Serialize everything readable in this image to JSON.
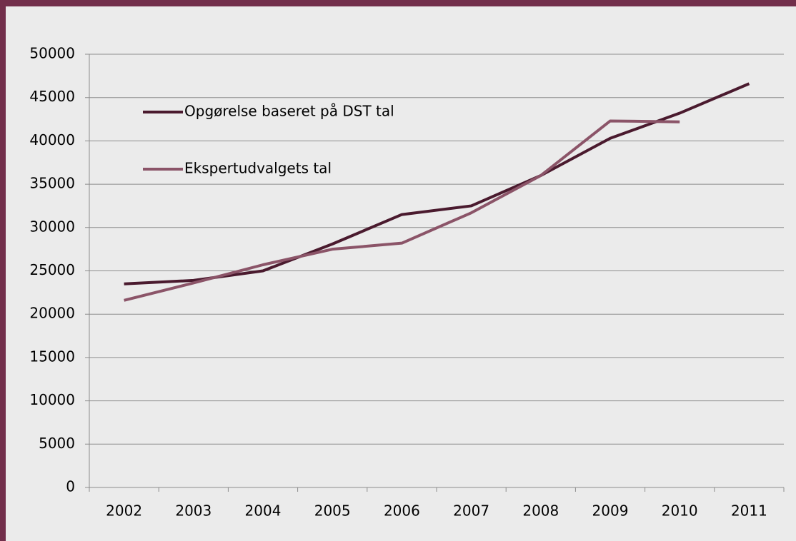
{
  "chart_data": {
    "type": "line",
    "categories": [
      "2002",
      "2003",
      "2004",
      "2005",
      "2006",
      "2007",
      "2008",
      "2009",
      "2010",
      "2011"
    ],
    "series": [
      {
        "name": "Opgørelse baseret på DST tal",
        "color": "#4a1a2e",
        "values": [
          23500,
          23900,
          25000,
          28100,
          31500,
          32500,
          36000,
          40300,
          43200,
          46600
        ]
      },
      {
        "name": "Ekspertudvalgets tal",
        "color": "#8b5468",
        "values": [
          21600,
          23600,
          25700,
          27500,
          28200,
          31700,
          36000,
          42300,
          42200,
          null
        ]
      }
    ],
    "ylim": [
      0,
      50000
    ],
    "yticks": [
      0,
      5000,
      10000,
      15000,
      20000,
      25000,
      30000,
      35000,
      40000,
      45000,
      50000
    ],
    "grid": true,
    "legend": "upper left"
  }
}
